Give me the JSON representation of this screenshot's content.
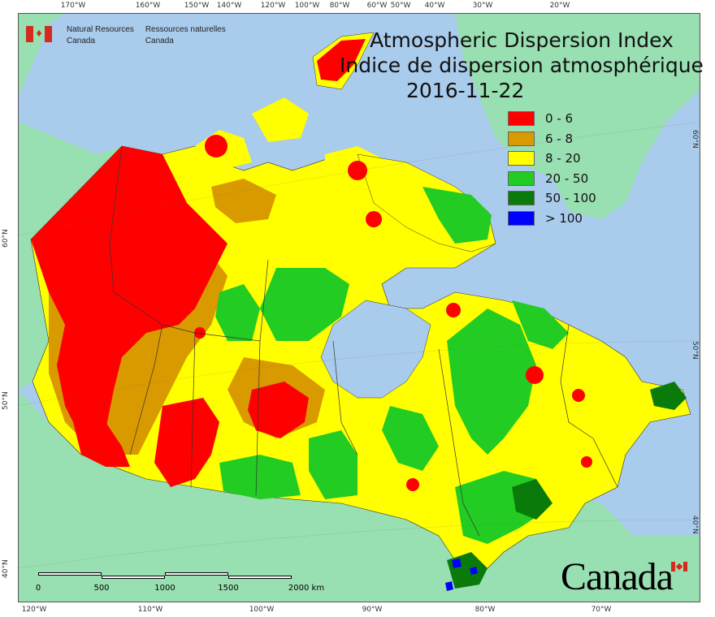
{
  "title": {
    "line1": "Atmospheric Dispersion Index",
    "line2": "Indice de dispersion atmosphérique",
    "date": "2016-11-22"
  },
  "agency": {
    "en_line1": "Natural Resources",
    "en_line2": "Canada",
    "fr_line1": "Ressources naturelles",
    "fr_line2": "Canada",
    "flag_icon": "canada-flag-icon"
  },
  "wordmark": "Canada",
  "legend": [
    {
      "label": "0 - 6",
      "color": "#ff0000"
    },
    {
      "label": "6 - 8",
      "color": "#d99a00"
    },
    {
      "label": "8 - 20",
      "color": "#ffff00"
    },
    {
      "label": "20 - 50",
      "color": "#22cc22"
    },
    {
      "label": "50 - 100",
      "color": "#0a7a0a"
    },
    {
      "label": "> 100",
      "color": "#0000ff"
    }
  ],
  "scalebar": {
    "labels": [
      "0",
      "500",
      "1000",
      "1500",
      "2000 km"
    ]
  },
  "ticks": {
    "top": [
      "170°W",
      "160°W",
      "150°W",
      "140°W",
      "120°W",
      "100°W",
      "80°W",
      "60°W",
      "50°W",
      "40°W",
      "30°W",
      "20°W"
    ],
    "bottom": [
      "120°W",
      "110°W",
      "100°W",
      "90°W",
      "80°W",
      "70°W"
    ],
    "left": [
      "60°N",
      "50°N",
      "40°N"
    ],
    "right": [
      "60°N",
      "50°N",
      "40°N"
    ]
  },
  "colors": {
    "ocean": "#a9cbec",
    "foreign_land": "#98dfb1",
    "boundary": "#333333"
  }
}
